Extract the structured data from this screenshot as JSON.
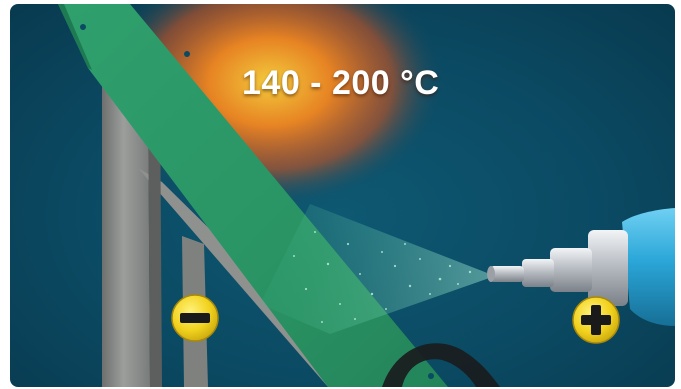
{
  "temperature_label": "140 - 200 °C",
  "colors": {
    "background": "#0b4a63",
    "panel_green": "#2e9a6a",
    "rack_metal": "#8a8c8a",
    "heat_glow": "#ff7a1a",
    "spray_gun_body": "#2aa6d8",
    "nozzle_metal": "#c8ccd0",
    "polarity_badge": "#f2d21e"
  },
  "icons": {
    "negative_badge": "minus-icon",
    "positive_badge": "plus-icon"
  }
}
